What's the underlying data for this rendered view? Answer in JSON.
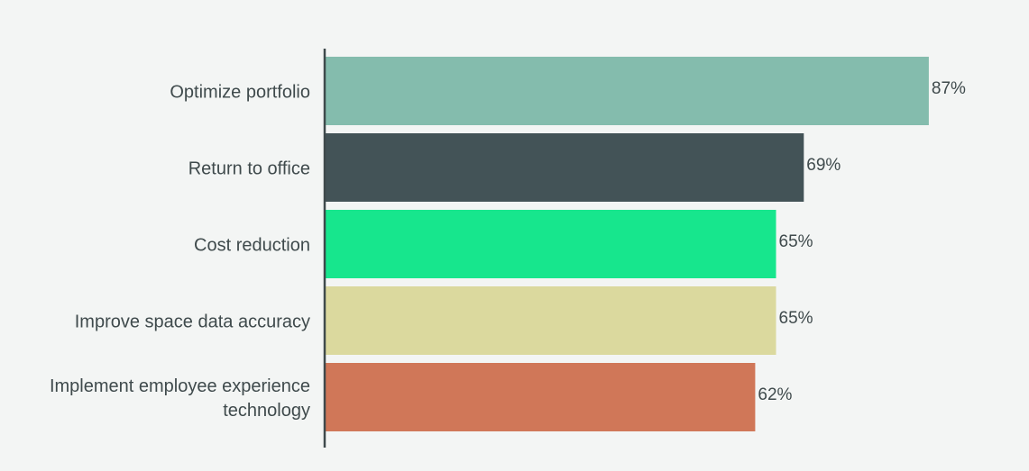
{
  "chart_data": {
    "type": "bar",
    "orientation": "horizontal",
    "categories": [
      "Optimize portfolio",
      "Return to office",
      "Cost reduction",
      "Improve space data accuracy",
      "Implement employee experience technology"
    ],
    "category_lines": [
      [
        "Optimize portfolio"
      ],
      [
        "Return to office"
      ],
      [
        "Cost reduction"
      ],
      [
        "Improve space data accuracy"
      ],
      [
        "Implement employee experience",
        "technology"
      ]
    ],
    "values": [
      87,
      69,
      65,
      65,
      62
    ],
    "value_labels": [
      "87%",
      "69%",
      "65%",
      "65%",
      "62%"
    ],
    "colors": [
      "#84bcad",
      "#435357",
      "#17e68d",
      "#dbd99e",
      "#d07758"
    ],
    "xlim": [
      0,
      100
    ],
    "grid": false,
    "legend": "none",
    "axis_color": "#3f4a4c",
    "text_color": "#3f4a4c"
  }
}
